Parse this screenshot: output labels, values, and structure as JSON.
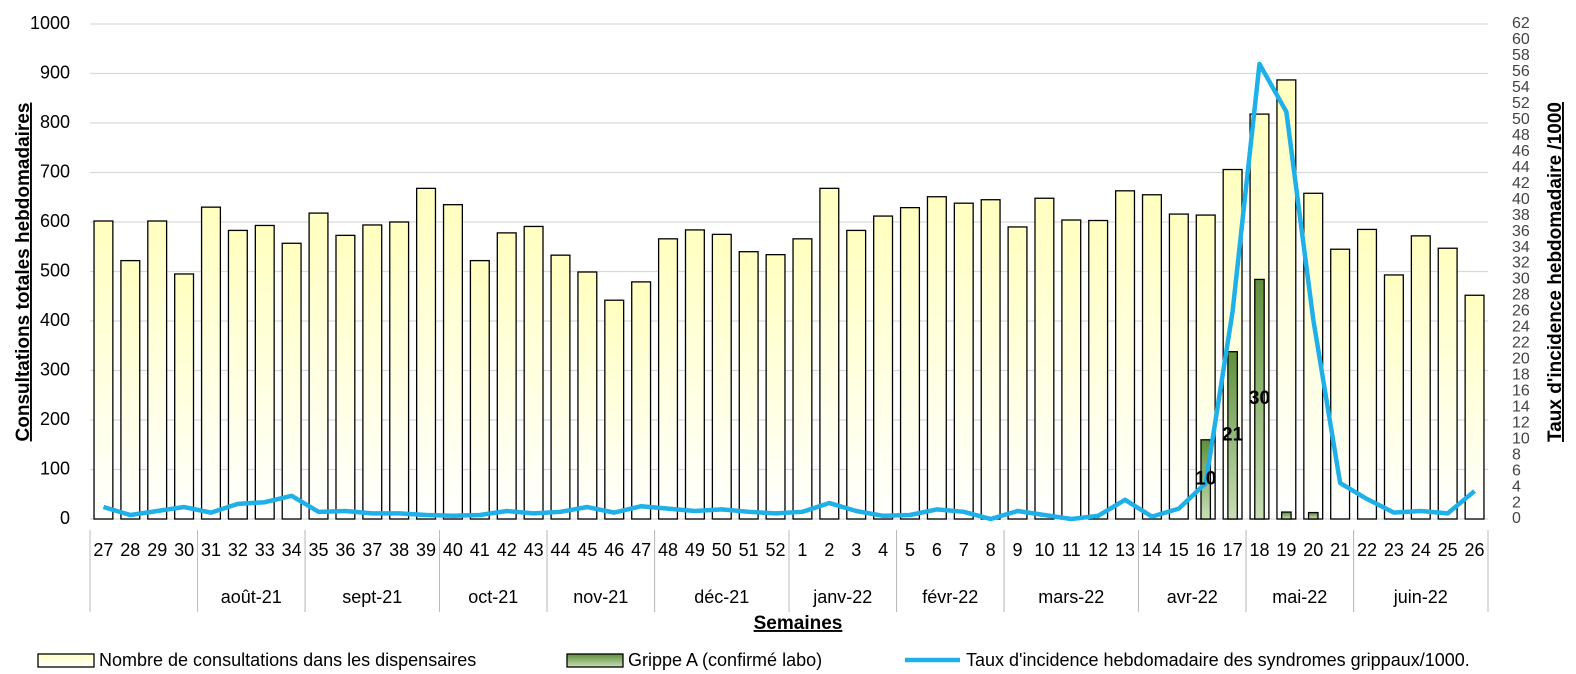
{
  "chart_data": {
    "type": "bar_line",
    "x_label": "Semaines",
    "y_label": "Consultations totales hebdomadaires",
    "y2_label": "Taux d'incidence hebdomadaire /1000",
    "categories": [
      "27",
      "28",
      "29",
      "30",
      "31",
      "32",
      "33",
      "34",
      "35",
      "36",
      "37",
      "38",
      "39",
      "40",
      "41",
      "42",
      "43",
      "44",
      "45",
      "46",
      "47",
      "48",
      "49",
      "50",
      "51",
      "52",
      "1",
      "2",
      "3",
      "4",
      "5",
      "6",
      "7",
      "8",
      "9",
      "10",
      "11",
      "12",
      "13",
      "14",
      "15",
      "16",
      "17",
      "18",
      "19",
      "20",
      "21",
      "22",
      "23",
      "24",
      "25",
      "26"
    ],
    "groups": [
      {
        "label": "août-21",
        "first": "31",
        "last": "34"
      },
      {
        "label": "sept-21",
        "first": "35",
        "last": "39"
      },
      {
        "label": "oct-21",
        "first": "40",
        "last": "43"
      },
      {
        "label": "nov-21",
        "first": "44",
        "last": "47"
      },
      {
        "label": "déc-21",
        "first": "48",
        "last": "52"
      },
      {
        "label": "janv-22",
        "first": "1",
        "last": "4"
      },
      {
        "label": "févr-22",
        "first": "5",
        "last": "8"
      },
      {
        "label": "mars-22",
        "first": "9",
        "last": "13"
      },
      {
        "label": "avr-22",
        "first": "14",
        "last": "17"
      },
      {
        "label": "mai-22",
        "first": "18",
        "last": "21"
      },
      {
        "label": "juin-22",
        "first": "22",
        "last": "26"
      }
    ],
    "series": [
      {
        "name": "Nombre de consultations dans les dispensaires",
        "type": "bar",
        "color": "#ffffc0",
        "values": [
          602,
          522,
          602,
          495,
          630,
          583,
          593,
          557,
          618,
          573,
          594,
          600,
          668,
          635,
          522,
          578,
          591,
          533,
          499,
          442,
          479,
          566,
          584,
          575,
          540,
          534,
          566,
          668,
          583,
          612,
          629,
          651,
          638,
          645,
          590,
          648,
          604,
          603,
          663,
          655,
          616,
          614,
          706,
          818,
          887,
          658,
          545,
          585,
          493,
          572,
          547,
          452
        ]
      },
      {
        "name": "Grippe A (confirmé labo)",
        "type": "bar",
        "color": "#5e8f3c",
        "values": [
          0,
          0,
          0,
          0,
          0,
          0,
          0,
          0,
          0,
          0,
          0,
          0,
          0,
          0,
          0,
          0,
          0,
          0,
          0,
          0,
          0,
          0,
          0,
          0,
          0,
          0,
          0,
          0,
          0,
          0,
          0,
          0,
          0,
          0,
          0,
          0,
          0,
          0,
          0,
          0,
          0,
          160,
          338,
          484,
          14,
          13,
          0,
          0,
          0,
          0,
          0,
          0
        ]
      },
      {
        "name": "Taux d'incidence hebdomadaire des syndromes grippaux/1000.",
        "type": "line",
        "axis": "y2",
        "color": "#1fb0e8",
        "values": [
          1.5,
          0.5,
          1,
          1.5,
          0.8,
          1.9,
          2.1,
          2.9,
          0.9,
          1,
          0.7,
          0.7,
          0.5,
          0.4,
          0.5,
          1,
          0.7,
          0.9,
          1.5,
          0.8,
          1.6,
          1.3,
          1,
          1.2,
          0.9,
          0.7,
          0.9,
          2,
          1,
          0.4,
          0.5,
          1.2,
          0.9,
          0,
          1,
          0.5,
          0,
          0.4,
          2.4,
          0.3,
          1.3,
          4.5,
          26,
          57,
          51,
          25,
          4.5,
          2.5,
          0.8,
          1,
          0.7,
          3.5
        ]
      }
    ],
    "annotations": [
      {
        "week": "16",
        "text": "10"
      },
      {
        "week": "17",
        "text": "21"
      },
      {
        "week": "18",
        "text": "30"
      }
    ],
    "ylim": [
      0,
      1000
    ],
    "yticks": [
      0,
      100,
      200,
      300,
      400,
      500,
      600,
      700,
      800,
      900,
      1000
    ],
    "y2lim": [
      0,
      62
    ],
    "y2ticks": [
      0,
      2,
      4,
      6,
      8,
      10,
      12,
      14,
      16,
      18,
      20,
      22,
      24,
      26,
      28,
      30,
      32,
      34,
      36,
      38,
      40,
      42,
      44,
      46,
      48,
      50,
      52,
      54,
      56,
      58,
      60,
      62
    ],
    "grid": true
  }
}
